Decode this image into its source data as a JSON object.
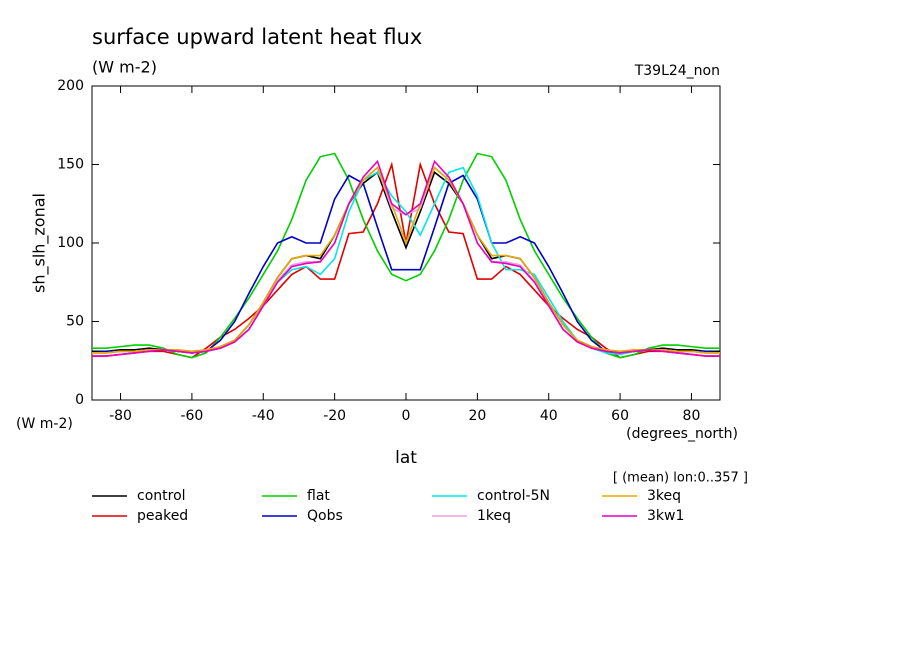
{
  "chart_data": {
    "type": "line",
    "title": "surface upward latent heat flux",
    "units": "(W m-2)",
    "run_label": "T39L24_non",
    "ylabel": "sh_slh_zonal",
    "y_units": "(W m-2)",
    "x_units": "(degrees_north)",
    "xlabel": "lat",
    "note": "[ (mean) lon:0..357 ]",
    "x": [
      -88,
      -84,
      -80,
      -76,
      -72,
      -68,
      -64,
      -60,
      -56,
      -52,
      -48,
      -44,
      -40,
      -36,
      -32,
      -28,
      -24,
      -20,
      -16,
      -12,
      -8,
      -4,
      0,
      4,
      8,
      12,
      16,
      20,
      24,
      28,
      32,
      36,
      40,
      44,
      48,
      52,
      56,
      60,
      64,
      68,
      72,
      76,
      80,
      84,
      88
    ],
    "xlim": [
      -88,
      88
    ],
    "xticks": [
      -80,
      -60,
      -40,
      -20,
      0,
      20,
      40,
      60,
      80
    ],
    "ylim": [
      0,
      200
    ],
    "yticks": [
      0,
      50,
      100,
      150,
      200
    ],
    "series": [
      {
        "name": "control",
        "color": "#000000",
        "values": [
          31,
          31,
          32,
          32,
          33,
          32,
          31,
          30,
          31,
          34,
          38,
          48,
          62,
          78,
          90,
          92,
          90,
          105,
          125,
          138,
          145,
          120,
          97,
          120,
          145,
          138,
          125,
          105,
          90,
          92,
          90,
          78,
          62,
          48,
          38,
          34,
          31,
          30,
          31,
          32,
          33,
          32,
          32,
          31,
          31
        ]
      },
      {
        "name": "peaked",
        "color": "#e00000",
        "values": [
          28,
          28,
          29,
          30,
          31,
          31,
          29,
          27,
          33,
          40,
          45,
          52,
          60,
          70,
          80,
          85,
          77,
          77,
          106,
          107,
          125,
          150,
          100,
          150,
          125,
          107,
          106,
          77,
          77,
          85,
          80,
          70,
          60,
          52,
          45,
          40,
          33,
          27,
          29,
          31,
          31,
          30,
          29,
          28,
          28
        ]
      },
      {
        "name": "flat",
        "color": "#00d000",
        "values": [
          33,
          33,
          34,
          35,
          35,
          33,
          29,
          27,
          30,
          40,
          52,
          65,
          80,
          95,
          115,
          140,
          155,
          157,
          140,
          115,
          95,
          80,
          76,
          80,
          95,
          115,
          140,
          157,
          155,
          140,
          115,
          95,
          80,
          65,
          52,
          40,
          30,
          27,
          29,
          33,
          35,
          35,
          34,
          33,
          33
        ]
      },
      {
        "name": "Qobs",
        "color": "#0000c8",
        "values": [
          30,
          31,
          31,
          31,
          32,
          32,
          31,
          30,
          31,
          38,
          50,
          68,
          85,
          100,
          104,
          100,
          100,
          128,
          143,
          138,
          110,
          83,
          83,
          83,
          110,
          138,
          143,
          128,
          100,
          100,
          104,
          100,
          85,
          68,
          50,
          38,
          31,
          30,
          31,
          32,
          32,
          31,
          31,
          31,
          30
        ]
      },
      {
        "name": "control-5N",
        "color": "#00e8e8",
        "values": [
          30,
          30,
          31,
          31,
          32,
          32,
          31,
          30,
          31,
          33,
          37,
          45,
          60,
          75,
          83,
          85,
          80,
          90,
          120,
          140,
          145,
          130,
          120,
          105,
          125,
          145,
          148,
          130,
          100,
          83,
          83,
          80,
          65,
          50,
          38,
          33,
          30,
          29,
          31,
          32,
          32,
          31,
          31,
          30,
          30
        ]
      },
      {
        "name": "1keq",
        "color": "#f0a0e0",
        "values": [
          30,
          30,
          31,
          31,
          32,
          32,
          32,
          31,
          32,
          34,
          37,
          45,
          60,
          76,
          86,
          88,
          88,
          100,
          125,
          140,
          148,
          122,
          118,
          122,
          148,
          140,
          125,
          100,
          88,
          88,
          86,
          76,
          60,
          45,
          37,
          34,
          32,
          31,
          32,
          32,
          32,
          31,
          31,
          30,
          30
        ]
      },
      {
        "name": "3keq",
        "color": "#e8a800",
        "values": [
          30,
          30,
          31,
          31,
          32,
          32,
          32,
          31,
          32,
          34,
          38,
          48,
          62,
          78,
          90,
          92,
          92,
          105,
          125,
          140,
          148,
          125,
          100,
          125,
          148,
          140,
          125,
          105,
          92,
          92,
          90,
          78,
          62,
          48,
          38,
          34,
          32,
          31,
          32,
          32,
          32,
          31,
          31,
          30,
          30
        ]
      },
      {
        "name": "3kw1",
        "color": "#e800c0",
        "values": [
          28,
          28,
          29,
          30,
          31,
          32,
          31,
          30,
          31,
          33,
          37,
          45,
          60,
          75,
          85,
          87,
          88,
          100,
          125,
          142,
          152,
          125,
          118,
          125,
          152,
          142,
          125,
          100,
          88,
          87,
          85,
          75,
          60,
          45,
          37,
          33,
          31,
          30,
          31,
          32,
          31,
          30,
          29,
          28,
          28
        ]
      }
    ]
  }
}
